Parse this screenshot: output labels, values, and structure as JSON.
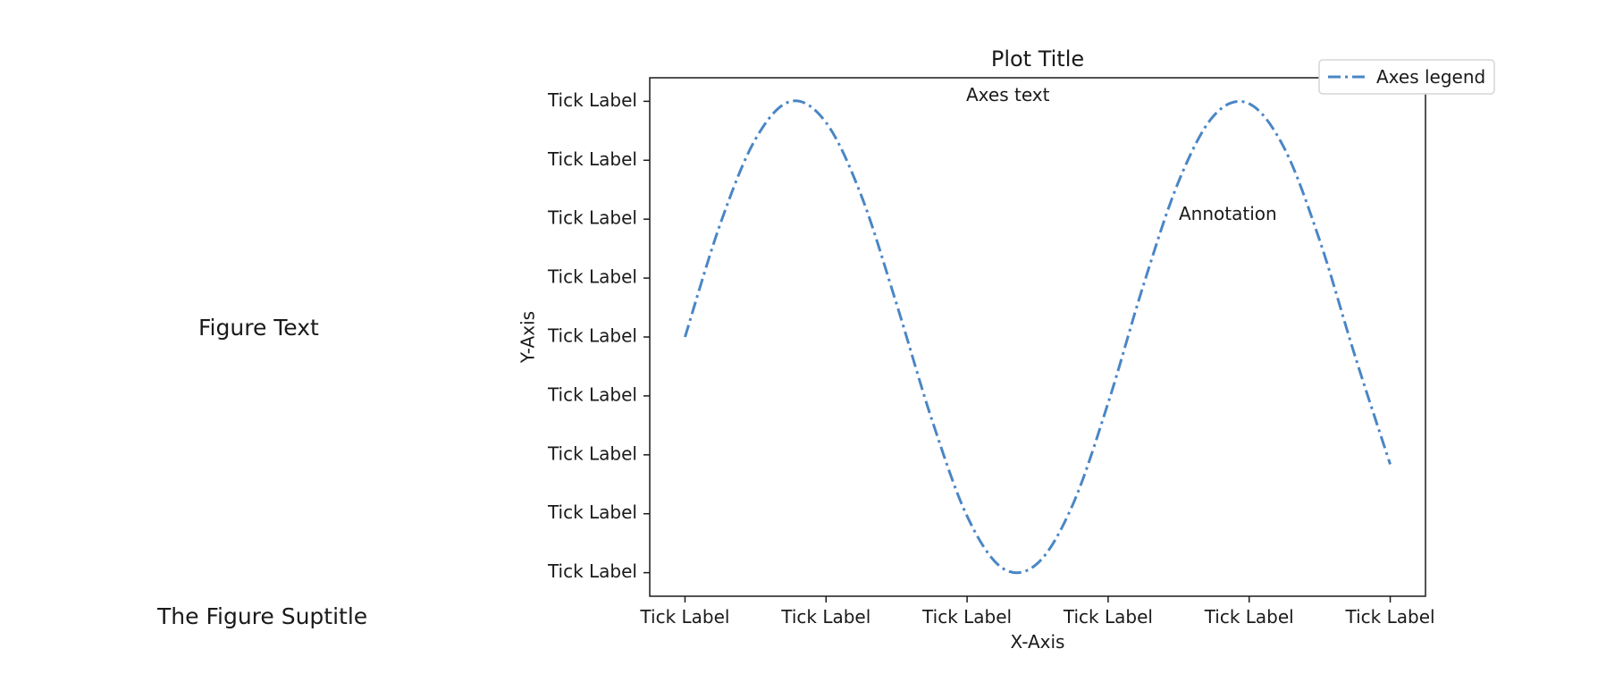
{
  "figure": {
    "text": "Figure Text",
    "suptitle": "The Figure Suptitle"
  },
  "chart_data": {
    "type": "line",
    "title": "Plot Title",
    "xlabel": "X-Axis",
    "ylabel": "Y-Axis",
    "axes_text": "Axes text",
    "annotation": "Annotation",
    "legend": {
      "placement": "top-right",
      "entries": [
        "Axes legend"
      ]
    },
    "xticks": [
      "Tick Label",
      "Tick Label",
      "Tick Label",
      "Tick Label",
      "Tick Label",
      "Tick Label"
    ],
    "yticks": [
      "Tick Label",
      "Tick Label",
      "Tick Label",
      "Tick Label",
      "Tick Label",
      "Tick Label",
      "Tick Label",
      "Tick Label",
      "Tick Label"
    ],
    "xlim": [
      -0.5,
      10.5
    ],
    "ylim": [
      -1.1,
      1.1
    ],
    "grid": false,
    "series": [
      {
        "name": "Axes legend",
        "color": "#4a86c5",
        "linestyle": "dash-dot",
        "x": [
          0,
          0.5,
          1,
          1.5,
          2,
          2.5,
          3,
          3.5,
          4,
          4.5,
          5,
          5.5,
          6,
          6.5,
          7,
          7.5,
          8,
          8.5,
          9,
          9.5,
          10
        ],
        "y": [
          0,
          0.48,
          0.84,
          1.0,
          0.91,
          0.6,
          0.14,
          -0.35,
          -0.76,
          -0.98,
          -0.96,
          -0.71,
          -0.28,
          0.22,
          0.66,
          0.94,
          0.99,
          0.8,
          0.41,
          -0.08,
          -0.54
        ]
      }
    ]
  }
}
